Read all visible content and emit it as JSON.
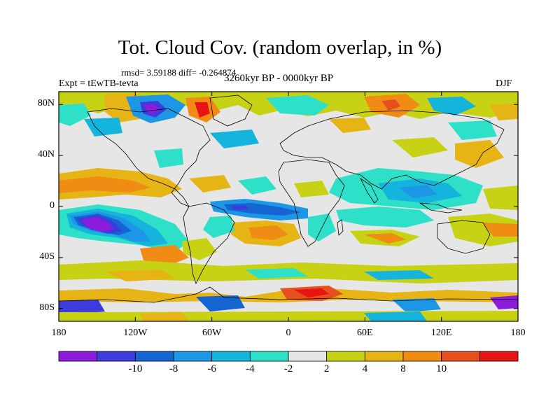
{
  "title": "Tot. Cloud Cov. (random overlap, in %)",
  "stats": "rmsd= 3.59188 diff= -0.264874",
  "experiment": "Expt = tEwTB-tevta",
  "period": "3260kyr BP - 0000kyr BP",
  "season": "DJF",
  "map": {
    "lon_range": [
      -180,
      180
    ],
    "lat_range": [
      -90,
      90
    ],
    "lat_ticks": [
      {
        "value": 80,
        "label": "80N"
      },
      {
        "value": 40,
        "label": "40N"
      },
      {
        "value": 0,
        "label": "0"
      },
      {
        "value": -40,
        "label": "40S"
      },
      {
        "value": -80,
        "label": "80S"
      }
    ],
    "lon_ticks": [
      {
        "value": -180,
        "label": "180"
      },
      {
        "value": -120,
        "label": "120W"
      },
      {
        "value": -60,
        "label": "60W"
      },
      {
        "value": 0,
        "label": "0"
      },
      {
        "value": 60,
        "label": "60E"
      },
      {
        "value": 120,
        "label": "120E"
      },
      {
        "value": 180,
        "label": "180"
      }
    ]
  },
  "colorbar": {
    "colors": [
      "#8c1cdc",
      "#3c3cdc",
      "#1464d2",
      "#1e96e6",
      "#14b4dc",
      "#2ee0c8",
      "#e6e6e6",
      "#c8d214",
      "#e6b414",
      "#f08c14",
      "#e6501e",
      "#e61414"
    ],
    "labels": [
      "-10",
      "-8",
      "-6",
      "-4",
      "-2",
      "2",
      "4",
      "8",
      "10"
    ]
  },
  "field_colors": {
    "neutral": "#e6e6e6",
    "ocean_land_outline": "#000000"
  }
}
